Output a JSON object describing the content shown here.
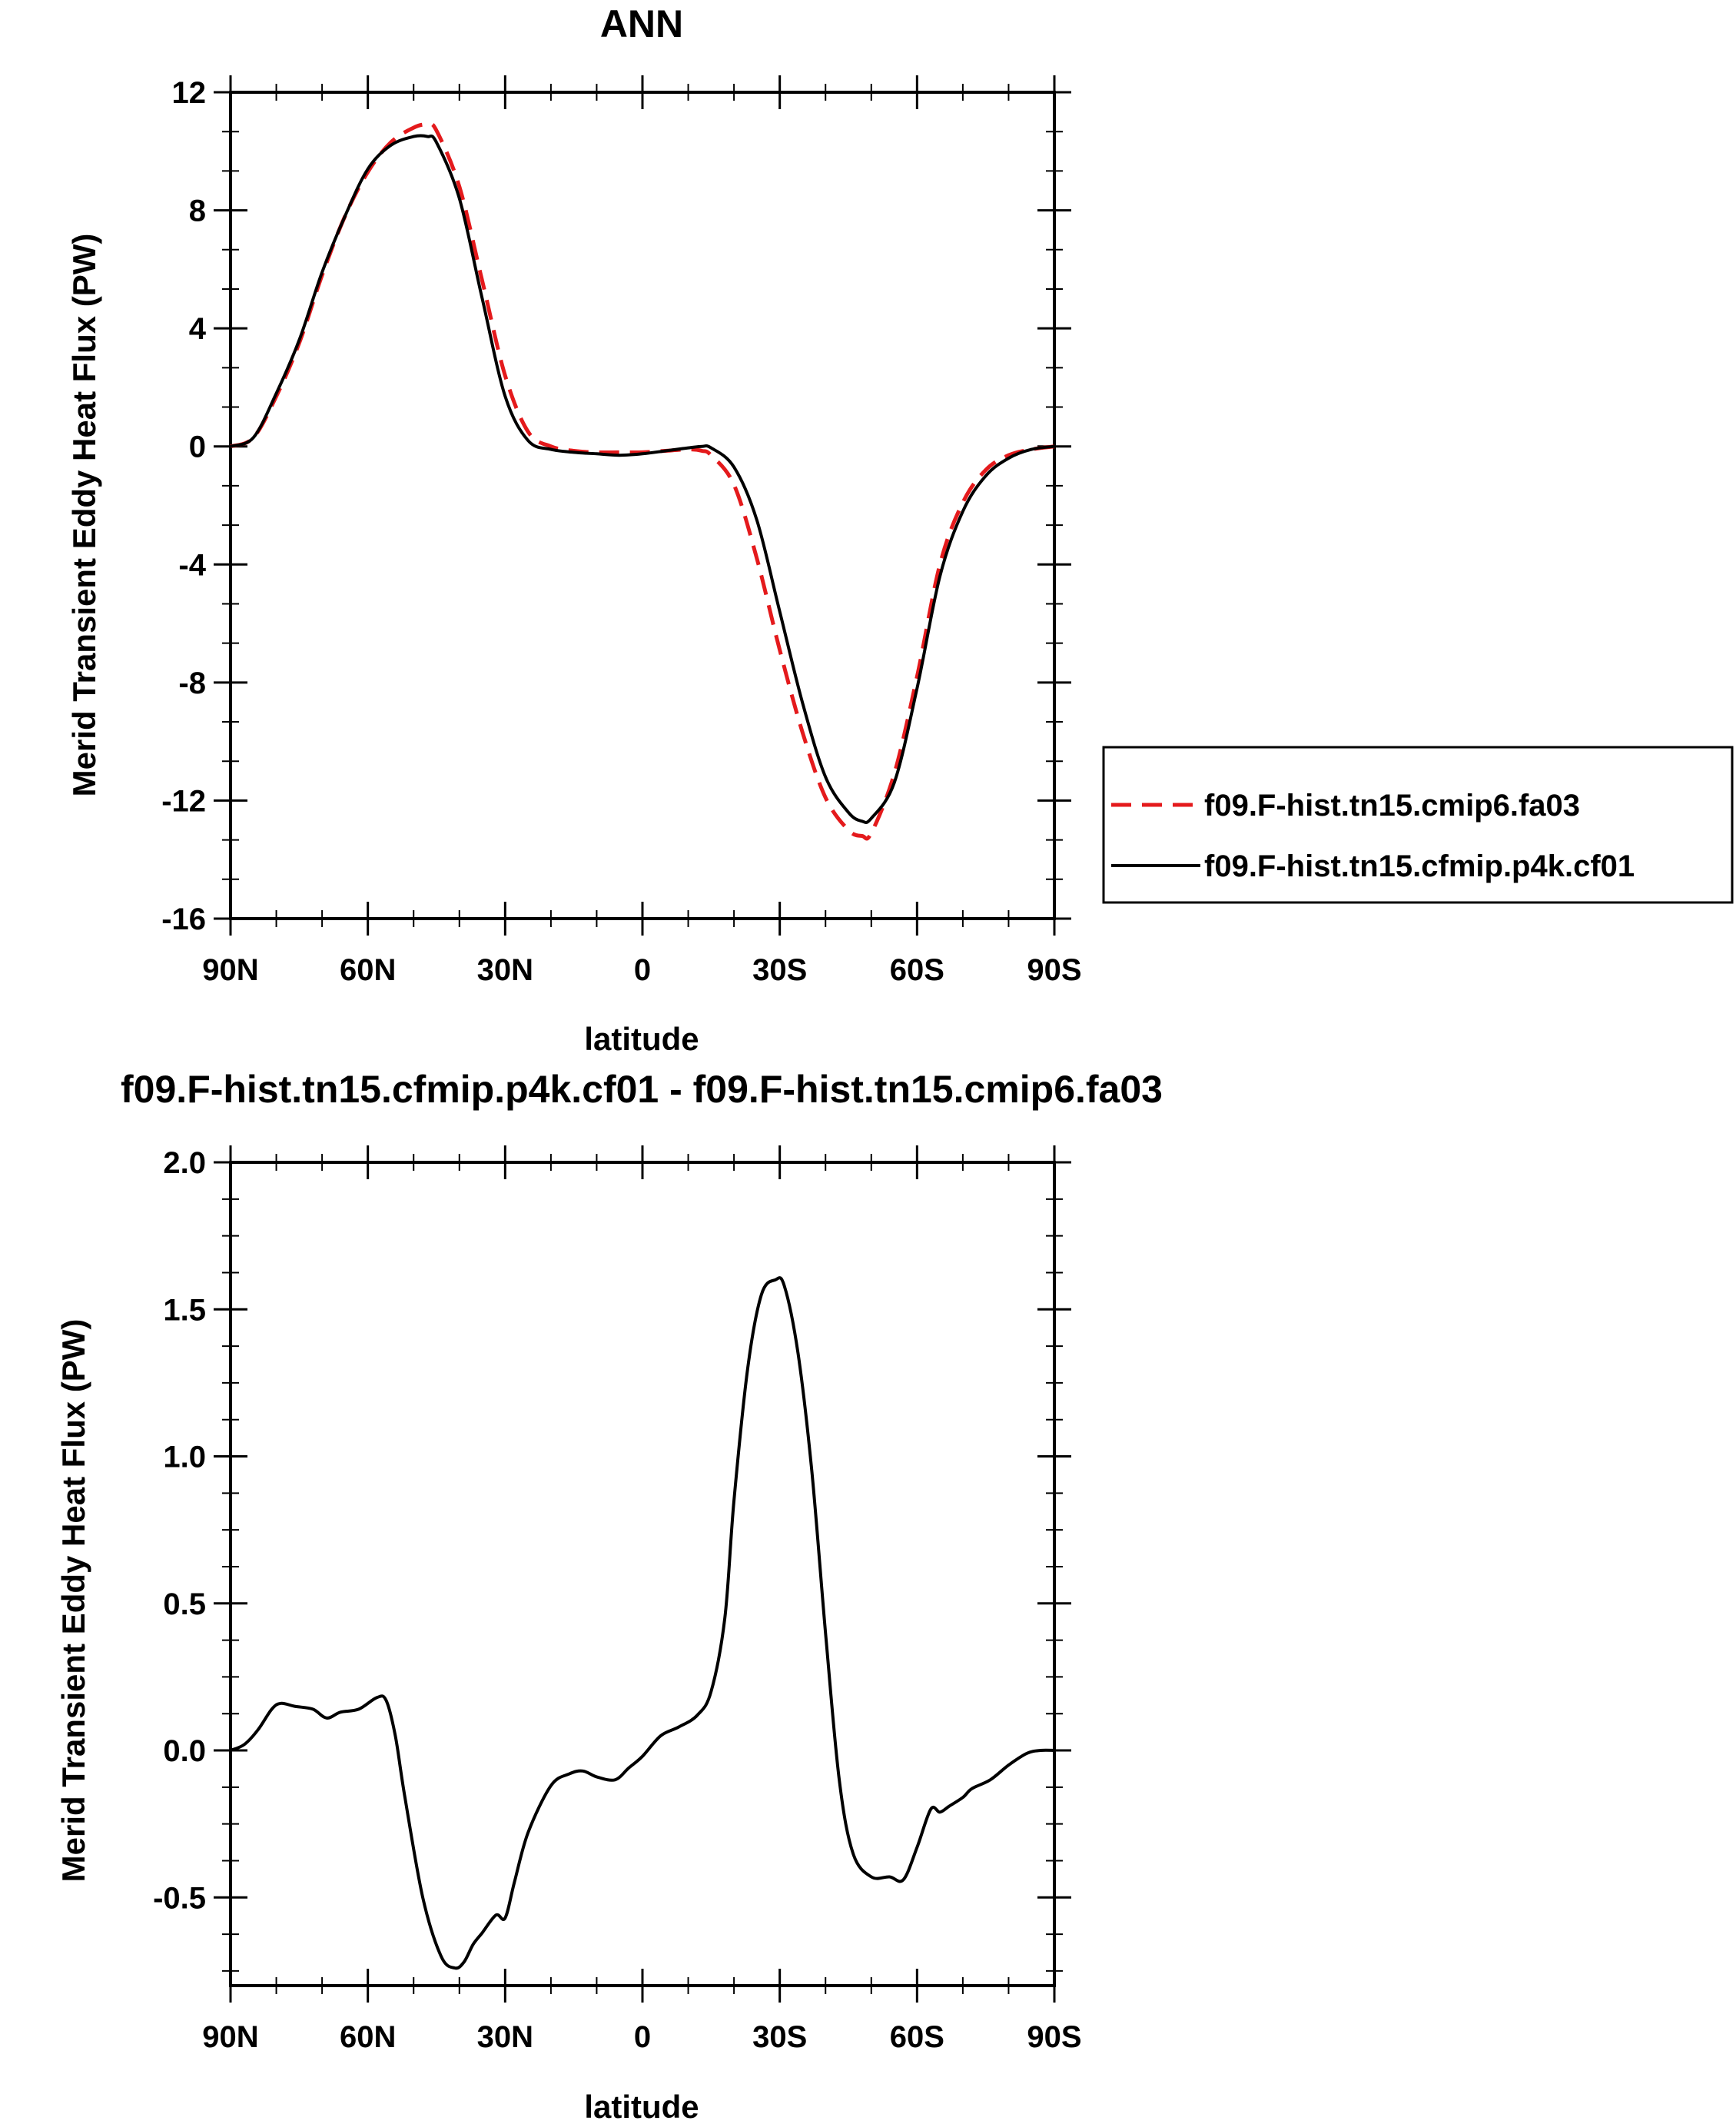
{
  "chart_data": [
    {
      "type": "line",
      "title": "ANN",
      "xlabel": "latitude",
      "ylabel": "Merid Transient Eddy Heat Flux (PW)",
      "x_ticks": [
        "90N",
        "60N",
        "30N",
        "0",
        "30S",
        "60S",
        "90S"
      ],
      "y_ticks": [
        "12",
        "8",
        "4",
        "0",
        "-4",
        "-8",
        "-12",
        "-16"
      ],
      "xlim": [
        90,
        -90
      ],
      "ylim": [
        -16,
        12
      ],
      "legend_placement": "outside-right",
      "grid": false,
      "x": [
        90,
        85,
        80,
        75,
        70,
        65,
        60,
        55,
        50,
        47,
        45,
        40,
        35,
        30,
        25,
        20,
        15,
        10,
        5,
        0,
        -5,
        -10,
        -13,
        -15,
        -20,
        -25,
        -30,
        -35,
        -40,
        -45,
        -48,
        -50,
        -55,
        -60,
        -65,
        -70,
        -75,
        -80,
        -85,
        -90
      ],
      "series": [
        {
          "name": "f09.F-hist.tn15.cmip6.fa03",
          "color": "#e41a1c",
          "dash": "dashed",
          "values": [
            0,
            0.3,
            1.7,
            3.5,
            5.8,
            7.8,
            9.3,
            10.3,
            10.8,
            10.9,
            10.7,
            8.8,
            5.6,
            2.4,
            0.5,
            0.0,
            -0.15,
            -0.2,
            -0.2,
            -0.2,
            -0.15,
            -0.1,
            -0.15,
            -0.3,
            -1.3,
            -3.8,
            -6.9,
            -9.7,
            -11.9,
            -13.0,
            -13.2,
            -13.1,
            -11.1,
            -7.8,
            -4.0,
            -1.9,
            -0.8,
            -0.3,
            -0.1,
            0
          ]
        },
        {
          "name": "f09.F-hist.tn15.cfmip.p4k.cf01",
          "color": "#000000",
          "dash": "solid",
          "values": [
            0,
            0.3,
            1.8,
            3.6,
            5.9,
            7.8,
            9.4,
            10.2,
            10.5,
            10.5,
            10.3,
            8.4,
            5.0,
            1.7,
            0.2,
            -0.1,
            -0.2,
            -0.25,
            -0.3,
            -0.25,
            -0.15,
            -0.05,
            0.0,
            -0.05,
            -0.7,
            -2.5,
            -5.6,
            -8.7,
            -11.2,
            -12.4,
            -12.7,
            -12.6,
            -11.4,
            -8.2,
            -4.4,
            -2.2,
            -1.0,
            -0.4,
            -0.1,
            0
          ]
        }
      ]
    },
    {
      "type": "line",
      "title": "f09.F-hist.tn15.cfmip.p4k.cf01 - f09.F-hist.tn15.cmip6.fa03",
      "xlabel": "latitude",
      "ylabel": "Merid Transient Eddy Heat Flux (PW)",
      "x_ticks": [
        "90N",
        "60N",
        "30N",
        "0",
        "30S",
        "60S",
        "90S"
      ],
      "y_ticks": [
        "2.0",
        "1.5",
        "1.0",
        "0.5",
        "0.0",
        "-0.5"
      ],
      "xlim": [
        90,
        -90
      ],
      "ylim": [
        -0.8,
        2.0
      ],
      "grid": false,
      "x": [
        90,
        87,
        84,
        81,
        79,
        76,
        72,
        69,
        66,
        62,
        58,
        56,
        54,
        52,
        48,
        44,
        41,
        39,
        37,
        35,
        32,
        30,
        28,
        25,
        20,
        16,
        13,
        10,
        6,
        3,
        0,
        -4,
        -8,
        -12,
        -15,
        -18,
        -20,
        -23,
        -26,
        -29,
        -31,
        -34,
        -37,
        -40,
        -43,
        -46,
        -50,
        -54,
        -57,
        -60,
        -63,
        -65,
        -67,
        -70,
        -72,
        -76,
        -80,
        -84,
        -87,
        -90
      ],
      "series": [
        {
          "name": "",
          "color": "#000000",
          "dash": "solid",
          "values": [
            0.0,
            0.02,
            0.07,
            0.14,
            0.16,
            0.15,
            0.14,
            0.11,
            0.13,
            0.14,
            0.18,
            0.17,
            0.05,
            -0.15,
            -0.5,
            -0.7,
            -0.74,
            -0.72,
            -0.66,
            -0.62,
            -0.56,
            -0.57,
            -0.45,
            -0.28,
            -0.12,
            -0.08,
            -0.07,
            -0.09,
            -0.1,
            -0.06,
            -0.02,
            0.05,
            0.08,
            0.12,
            0.2,
            0.45,
            0.85,
            1.3,
            1.55,
            1.6,
            1.58,
            1.35,
            0.95,
            0.4,
            -0.1,
            -0.35,
            -0.43,
            -0.43,
            -0.44,
            -0.33,
            -0.2,
            -0.21,
            -0.19,
            -0.16,
            -0.13,
            -0.1,
            -0.05,
            -0.01,
            0.0,
            0.0
          ]
        }
      ]
    }
  ]
}
